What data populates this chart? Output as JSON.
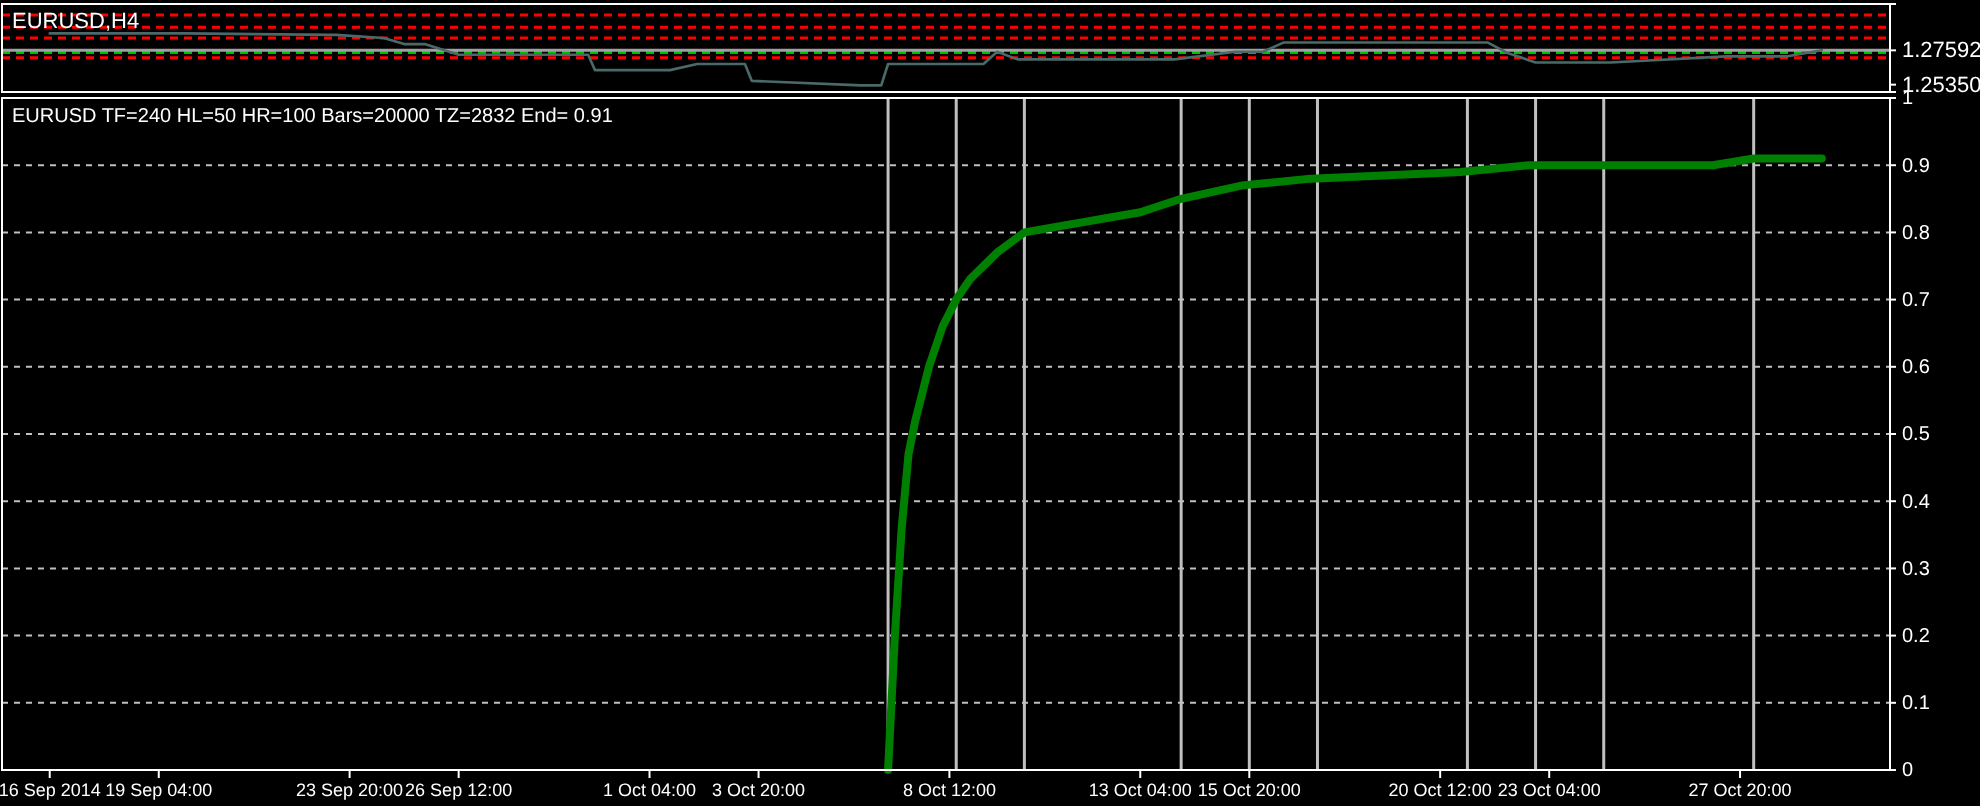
{
  "chart_data": [
    {
      "type": "line",
      "title": "EURUSD,H4",
      "color": "#4a6a6a",
      "xlim": [
        "2014-09-15T08:00",
        "2014-10-31T12:00"
      ],
      "ylim": [
        1.2487,
        1.3062
      ],
      "tick_labels": "y",
      "yticks": [
        {
          "value": 1.2535,
          "label": "1.25350"
        },
        {
          "value": 1.27592,
          "label": "1.27592"
        }
      ],
      "x": [
        "2014-09-16T12:00",
        "2014-09-17T20:00",
        "2014-09-19T20:00",
        "2014-09-23T12:00",
        "2014-09-24T16:00",
        "2014-09-25T04:00",
        "2014-09-25T16:00",
        "2014-09-26T12:00",
        "2014-09-29T16:00",
        "2014-09-29T20:00",
        "2014-10-01T16:00",
        "2014-10-02T08:00",
        "2014-10-03T12:00",
        "2014-10-03T16:00",
        "2014-10-06T08:00",
        "2014-10-06T20:00",
        "2014-10-07T00:00",
        "2014-10-09T08:00",
        "2014-10-09T16:00",
        "2014-10-10T04:00",
        "2014-10-14T00:00",
        "2014-10-15T12:00",
        "2014-10-16T04:00",
        "2014-10-16T16:00",
        "2014-10-21T16:00",
        "2014-10-22T04:00",
        "2014-10-22T20:00",
        "2014-10-24T16:00",
        "2014-10-27T12:00",
        "2014-10-29T00:00",
        "2014-10-29T20:00"
      ],
      "values": [
        1.287,
        1.287,
        1.287,
        1.286,
        1.284,
        1.28,
        1.28,
        1.273,
        1.273,
        1.263,
        1.263,
        1.267,
        1.267,
        1.256,
        1.253,
        1.253,
        1.267,
        1.267,
        1.275,
        1.27,
        1.27,
        1.275,
        1.275,
        1.281,
        1.281,
        1.274,
        1.268,
        1.268,
        1.272,
        1.272,
        1.276
      ],
      "ref_lines": [
        {
          "axis": "y",
          "value": 1.299,
          "color": "#ff0000",
          "line_style": "dashed"
        },
        {
          "axis": "y",
          "value": 1.291,
          "color": "#ff0000",
          "line_style": "dashed"
        },
        {
          "axis": "y",
          "value": 1.284,
          "color": "#ff0000",
          "line_style": "dashed"
        },
        {
          "axis": "y",
          "value": 1.271,
          "color": "#ff0000",
          "line_style": "dashed"
        },
        {
          "axis": "y",
          "value": 1.2745,
          "color": "#00c000",
          "line_style": "dashed"
        },
        {
          "axis": "y",
          "value": 1.27592,
          "color": "#a0a0a0",
          "line_style": "solid"
        }
      ]
    },
    {
      "type": "line",
      "title": "EURUSD TF=240 HL=50 HR=100 Bars=20000 TZ=2832  End= 0.91",
      "color": "#008000",
      "grid": "y",
      "xlim": [
        "2014-09-15T08:00",
        "2014-10-31T12:00"
      ],
      "ylim": [
        0,
        1
      ],
      "xticks": [
        {
          "value": "2014-09-16T12:00",
          "label": "16 Sep 2014"
        },
        {
          "value": "2014-09-19T04:00",
          "label": "19 Sep 04:00"
        },
        {
          "value": "2014-09-23T20:00",
          "label": "23 Sep 20:00"
        },
        {
          "value": "2014-09-26T12:00",
          "label": "26 Sep 12:00"
        },
        {
          "value": "2014-10-01T04:00",
          "label": "1 Oct 04:00"
        },
        {
          "value": "2014-10-03T20:00",
          "label": "3 Oct 20:00"
        },
        {
          "value": "2014-10-08T12:00",
          "label": "8 Oct 12:00"
        },
        {
          "value": "2014-10-13T04:00",
          "label": "13 Oct 04:00"
        },
        {
          "value": "2014-10-15T20:00",
          "label": "15 Oct 20:00"
        },
        {
          "value": "2014-10-20T12:00",
          "label": "20 Oct 12:00"
        },
        {
          "value": "2014-10-23T04:00",
          "label": "23 Oct 04:00"
        },
        {
          "value": "2014-10-27T20:00",
          "label": "27 Oct 20:00"
        }
      ],
      "yticks": [
        0,
        0.1,
        0.2,
        0.3,
        0.4,
        0.5,
        0.6,
        0.7,
        0.8,
        0.9,
        1
      ],
      "x": [
        "2014-10-07T00:00",
        "2014-10-07T04:00",
        "2014-10-07T08:00",
        "2014-10-07T12:00",
        "2014-10-07T16:00",
        "2014-10-07T20:00",
        "2014-10-08T00:00",
        "2014-10-08T08:00",
        "2014-10-08T16:00",
        "2014-10-09T00:00",
        "2014-10-09T16:00",
        "2014-10-10T08:00",
        "2014-10-13T04:00",
        "2014-10-14T04:00",
        "2014-10-15T16:00",
        "2014-10-17T08:00",
        "2014-10-21T00:00",
        "2014-10-22T16:00",
        "2014-10-27T04:00",
        "2014-10-28T04:00",
        "2014-10-29T20:00"
      ],
      "values": [
        0,
        0.2,
        0.36,
        0.47,
        0.52,
        0.56,
        0.6,
        0.66,
        0.7,
        0.73,
        0.77,
        0.8,
        0.83,
        0.85,
        0.87,
        0.88,
        0.89,
        0.9,
        0.9,
        0.91,
        0.91
      ],
      "ref_lines": [
        {
          "axis": "x",
          "value": "2014-10-07T00:00",
          "color": "#c0c0c0",
          "line_style": "solid"
        },
        {
          "axis": "x",
          "value": "2014-10-08T16:00",
          "color": "#c0c0c0",
          "line_style": "solid"
        },
        {
          "axis": "x",
          "value": "2014-10-10T08:00",
          "color": "#c0c0c0",
          "line_style": "solid"
        },
        {
          "axis": "x",
          "value": "2014-10-14T04:00",
          "color": "#c0c0c0",
          "line_style": "solid"
        },
        {
          "axis": "x",
          "value": "2014-10-15T20:00",
          "color": "#c0c0c0",
          "line_style": "solid"
        },
        {
          "axis": "x",
          "value": "2014-10-17T12:00",
          "color": "#c0c0c0",
          "line_style": "solid"
        },
        {
          "axis": "x",
          "value": "2014-10-21T04:00",
          "color": "#c0c0c0",
          "line_style": "solid"
        },
        {
          "axis": "x",
          "value": "2014-10-22T20:00",
          "color": "#c0c0c0",
          "line_style": "solid"
        },
        {
          "axis": "x",
          "value": "2014-10-24T12:00",
          "color": "#c0c0c0",
          "line_style": "solid"
        },
        {
          "axis": "x",
          "value": "2014-10-28T04:00",
          "color": "#c0c0c0",
          "line_style": "solid"
        }
      ]
    }
  ]
}
